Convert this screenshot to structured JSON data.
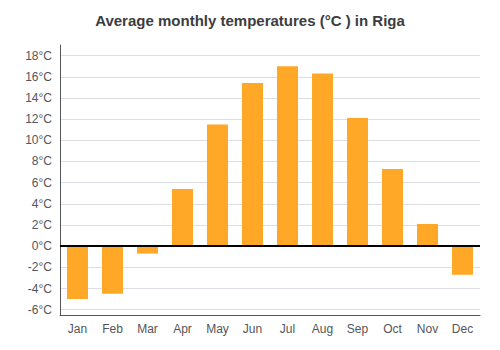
{
  "chart_data": {
    "type": "bar",
    "title": "Average monthly temperatures (°C ) in Riga",
    "categories": [
      "Jan",
      "Feb",
      "Mar",
      "Apr",
      "May",
      "Jun",
      "Jul",
      "Aug",
      "Sep",
      "Oct",
      "Nov",
      "Dec"
    ],
    "values": [
      -5.0,
      -4.5,
      -0.7,
      5.4,
      11.5,
      15.4,
      17.0,
      16.3,
      12.1,
      7.3,
      2.1,
      -2.7
    ],
    "color": "#FFA726",
    "ylim": [
      -6.5,
      19
    ],
    "yticks": [
      {
        "value": -6,
        "label": "-6°C"
      },
      {
        "value": -4,
        "label": "-4°C"
      },
      {
        "value": -2,
        "label": "-2°C"
      },
      {
        "value": 0,
        "label": "0°C"
      },
      {
        "value": 2,
        "label": "2°C"
      },
      {
        "value": 4,
        "label": "4°C"
      },
      {
        "value": 6,
        "label": "6°C"
      },
      {
        "value": 8,
        "label": "8°C"
      },
      {
        "value": 10,
        "label": "10°C"
      },
      {
        "value": 12,
        "label": "12°C"
      },
      {
        "value": 14,
        "label": "14°C"
      },
      {
        "value": 16,
        "label": "16°C"
      },
      {
        "value": 18,
        "label": "18°C"
      }
    ],
    "grid": true
  }
}
